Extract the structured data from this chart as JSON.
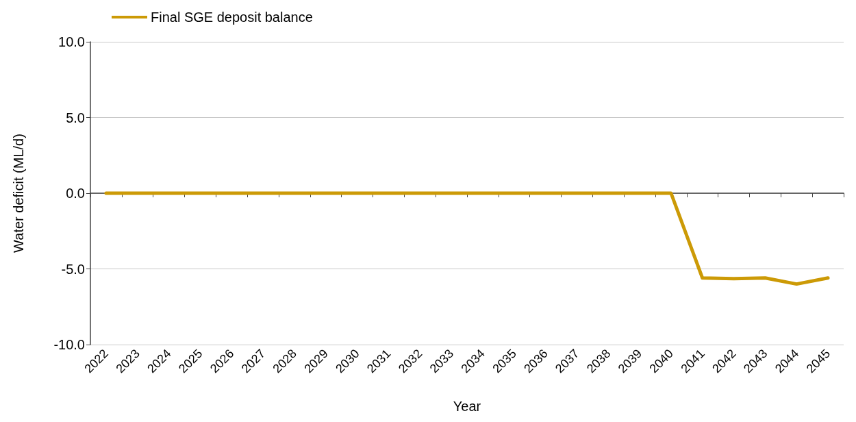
{
  "chart_data": {
    "type": "line",
    "xlabel": "Year",
    "ylabel": "Water deficit (ML/d)",
    "categories": [
      "2022",
      "2023",
      "2024",
      "2025",
      "2026",
      "2027",
      "2028",
      "2029",
      "2030",
      "2031",
      "2032",
      "2033",
      "2034",
      "2035",
      "2036",
      "2037",
      "2038",
      "2039",
      "2040",
      "2041",
      "2042",
      "2043",
      "2044",
      "2045"
    ],
    "series": [
      {
        "name": "Final SGE deposit balance",
        "color": "#cc9a06",
        "values": [
          0,
          0,
          0,
          0,
          0,
          0,
          0,
          0,
          0,
          0,
          0,
          0,
          0,
          0,
          0,
          0,
          0,
          0,
          0,
          -5.6,
          -5.65,
          -5.6,
          -6.0,
          -5.6
        ]
      }
    ],
    "ylim": [
      -10,
      10
    ],
    "yticks": [
      {
        "value": -10,
        "label": "-10.0"
      },
      {
        "value": -5,
        "label": "-5.0"
      },
      {
        "value": 0,
        "label": "0.0"
      },
      {
        "value": 5,
        "label": "5.0"
      },
      {
        "value": 10,
        "label": "10.0"
      }
    ],
    "grid": "y",
    "legend": "top left",
    "marker": "none",
    "line_style": "solid"
  }
}
